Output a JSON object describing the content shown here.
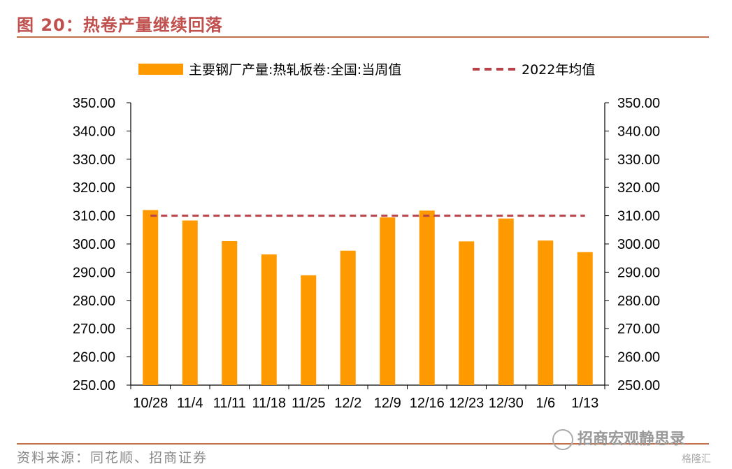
{
  "figure": {
    "title": "图 20：热卷产量继续回落",
    "source": "资料来源：同花顺、招商证券",
    "watermark": "招商宏观静思录",
    "watermark2": "格隆汇"
  },
  "chart_data": {
    "type": "bar",
    "categories": [
      "10/28",
      "11/4",
      "11/11",
      "11/18",
      "11/25",
      "12/2",
      "12/9",
      "12/16",
      "12/23",
      "12/30",
      "1/6",
      "1/13"
    ],
    "series": [
      {
        "name": "主要钢厂产量:热轧板卷:全国:当周值",
        "type": "bar",
        "color": "#ff9900",
        "values": [
          312.0,
          308.3,
          301.0,
          296.3,
          288.9,
          297.6,
          309.4,
          311.8,
          300.9,
          309.0,
          301.2,
          297.1
        ]
      },
      {
        "name": "2022年均值",
        "type": "line",
        "style": "dashed",
        "color": "#b8434a",
        "values": [
          310.0,
          310.0,
          310.0,
          310.0,
          310.0,
          310.0,
          310.0,
          310.0,
          310.0,
          310.0,
          310.0,
          310.0
        ]
      }
    ],
    "ylim": [
      250,
      350
    ],
    "yticks": [
      "250.00",
      "260.00",
      "270.00",
      "280.00",
      "290.00",
      "300.00",
      "310.00",
      "320.00",
      "330.00",
      "340.00",
      "350.00"
    ],
    "secondary_axis": true,
    "grid": false,
    "legend_position": "top"
  }
}
